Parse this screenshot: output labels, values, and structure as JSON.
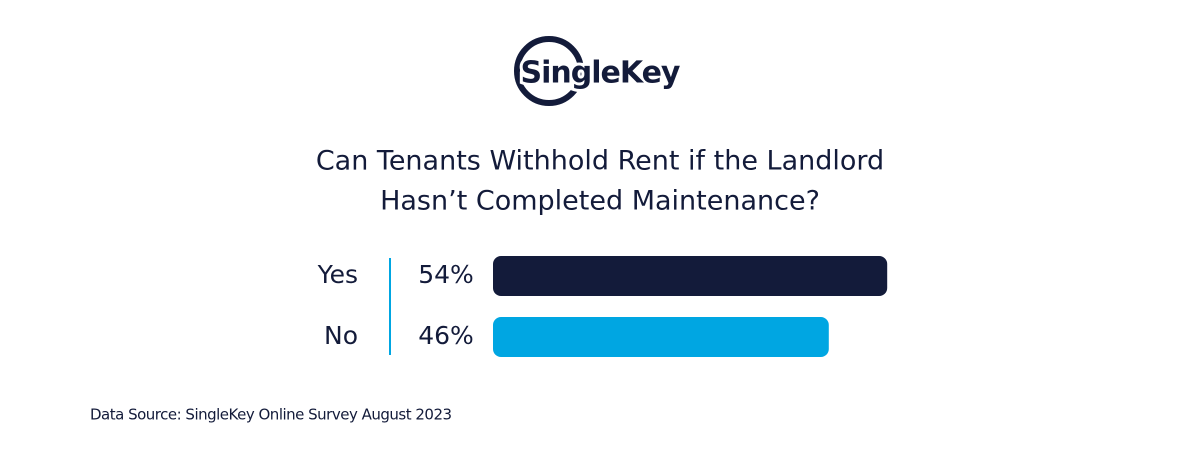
{
  "chart_data": {
    "type": "bar",
    "logo": "SingleKey",
    "title": [
      "Can Tenants Withhold Rent if the Landlord",
      "Hasn’t Completed Maintenance?"
    ],
    "categories": [
      "Yes",
      "No"
    ],
    "values": [
      54,
      46
    ],
    "value_labels": [
      "54%",
      "46%"
    ],
    "colors": [
      "#131b3a",
      "#00a6e2"
    ],
    "source": "Data Source: SingleKey Online Survey August 2023"
  }
}
